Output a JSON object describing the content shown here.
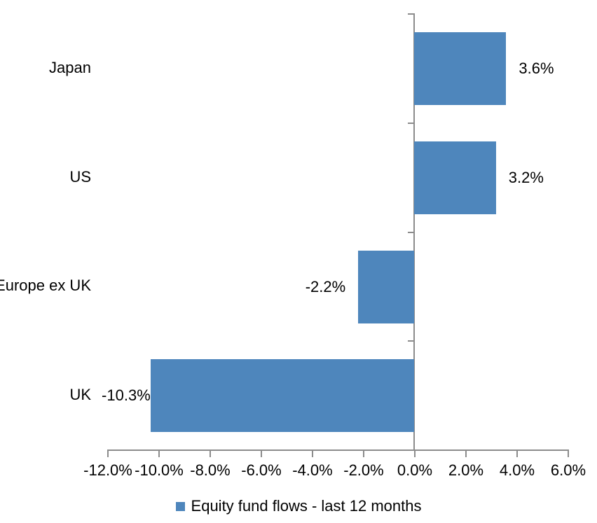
{
  "chart_data": {
    "type": "bar",
    "orientation": "horizontal",
    "title": "",
    "categories": [
      "Japan",
      "US",
      "Europe ex UK",
      "UK"
    ],
    "values": [
      3.6,
      3.2,
      -2.2,
      -10.3
    ],
    "data_labels": [
      "3.6%",
      "3.2%",
      "-2.2%",
      "-10.3%"
    ],
    "series": [
      {
        "name": "Equity fund flows - last 12 months",
        "values": [
          3.6,
          3.2,
          -2.2,
          -10.3
        ]
      }
    ],
    "series_name": "Equity fund flows - last 12 months",
    "xlim": [
      -12,
      6
    ],
    "x_tick_step": 2,
    "x_tick_labels": [
      "-12.0%",
      "-10.0%",
      "-8.0%",
      "-6.0%",
      "-4.0%",
      "-2.0%",
      "0.0%",
      "2.0%",
      "4.0%",
      "6.0%"
    ],
    "grid": "off",
    "legend_position": "bottom",
    "bar_color": "#4E86BC",
    "axis_color": "#8C8C8C",
    "text_color": "#000000",
    "background_color": "#ffffff"
  }
}
